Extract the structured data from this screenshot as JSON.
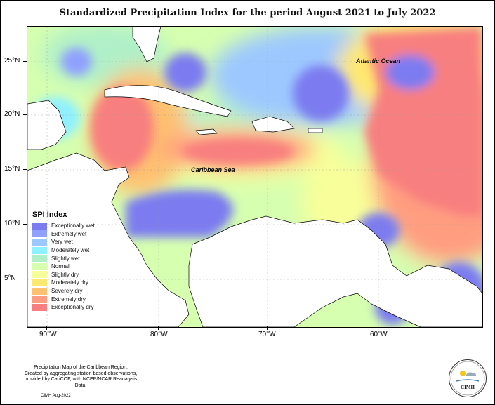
{
  "title": "Standardized Precipitation Index for the period August 2021 to July 2022",
  "map": {
    "y_ticks": [
      "25°N",
      "20°N",
      "15°N",
      "10°N",
      "5°N"
    ],
    "x_ticks": [
      "90°W",
      "80°W",
      "70°W",
      "60°W"
    ],
    "annotations": {
      "atlantic": "Atlantic Ocean",
      "caribbean": "Caribbean Sea"
    }
  },
  "legend": {
    "title": "SPI Index",
    "items": [
      {
        "label": "Exceptionally wet",
        "color": "#7b7bf0"
      },
      {
        "label": "Extremely wet",
        "color": "#8fa0ff"
      },
      {
        "label": "Very wet",
        "color": "#9cc8ff"
      },
      {
        "label": "Moderately wet",
        "color": "#8ff0ff"
      },
      {
        "label": "Slightly wet",
        "color": "#b0f0c8"
      },
      {
        "label": "Normal",
        "color": "#d6ffb0"
      },
      {
        "label": "Slightly dry",
        "color": "#f8ff9a"
      },
      {
        "label": "Moderately dry",
        "color": "#ffe870"
      },
      {
        "label": "Severely dry",
        "color": "#ffc070"
      },
      {
        "label": "Extremely dry",
        "color": "#ff9d80"
      },
      {
        "label": "Exceptionally dry",
        "color": "#f87f7f"
      }
    ]
  },
  "credits": {
    "line1": "Precipitation Map of the Caribbean Region.",
    "line2": "Created by aggregating station based observations,",
    "line3": "provided by CariCOF, with NCEP/NCAR Reanalysis Data.",
    "date": "CIMH Aug-2022"
  },
  "logo": {
    "text": "CIMH",
    "name": "cimh-logo-icon"
  }
}
